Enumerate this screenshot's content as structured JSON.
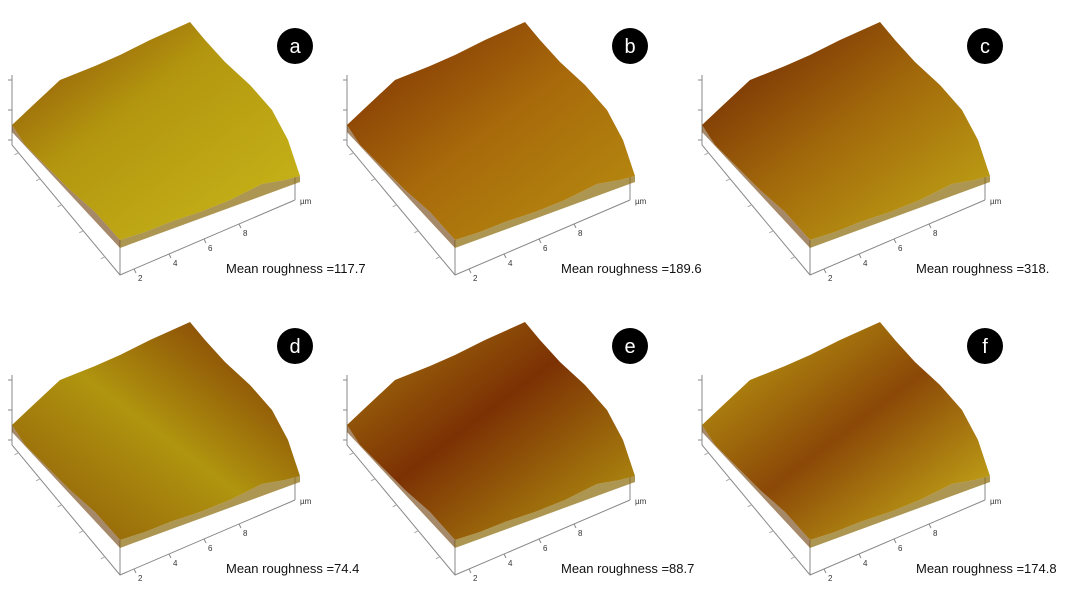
{
  "panels": [
    {
      "label": "a",
      "roughness": "Mean roughness =117.7",
      "ticks": [
        "2",
        "4",
        "6",
        "8"
      ],
      "unit": "µm"
    },
    {
      "label": "b",
      "roughness": "Mean roughness =189.6",
      "ticks": [
        "2",
        "4",
        "6",
        "8"
      ],
      "unit": "µm"
    },
    {
      "label": "c",
      "roughness": "Mean roughness =318.",
      "ticks": [
        "2",
        "4",
        "6",
        "8"
      ],
      "unit": "µm"
    },
    {
      "label": "d",
      "roughness": "Mean roughness =74.4",
      "ticks": [
        "2",
        "4",
        "6",
        "8"
      ],
      "unit": "µm"
    },
    {
      "label": "e",
      "roughness": "Mean roughness =88.7",
      "ticks": [
        "2",
        "4",
        "6",
        "8"
      ],
      "unit": "µm"
    },
    {
      "label": "f",
      "roughness": "Mean roughness =174.8",
      "ticks": [
        "2",
        "4",
        "6",
        "8"
      ],
      "unit": "µm"
    }
  ]
}
